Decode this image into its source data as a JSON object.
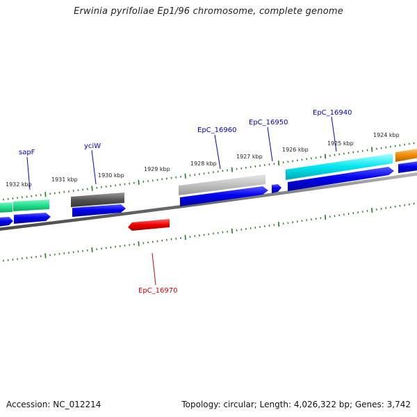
{
  "title": "Erwinia pyrifoliae Ep1/96 chromosome, complete genome",
  "accession_text": "Accession: NC_012214",
  "summary_text": "Topology: circular; Length: 4,026,322 bp; Genes: 3,742",
  "colors": {
    "backbone": "#808080",
    "ticks": "#1f7a1f",
    "label_plus": "#0000cc",
    "label_minus": "#cc0000"
  },
  "tick_labels": [
    "1932 kbp",
    "1931 kbp",
    "1930 kbp",
    "1929 kbp",
    "1928 kbp",
    "1927 kbp",
    "1926 kbp",
    "1925 kbp",
    "1924 kbp"
  ],
  "gene_labels": [
    {
      "text": "sapF",
      "strand": "plus"
    },
    {
      "text": "yciW",
      "strand": "plus"
    },
    {
      "text": "EpC_16960",
      "strand": "plus"
    },
    {
      "text": "EpC_16950",
      "strand": "plus"
    },
    {
      "text": "EpC_16940",
      "strand": "plus"
    },
    {
      "text": "EpC_16970",
      "strand": "minus"
    }
  ]
}
